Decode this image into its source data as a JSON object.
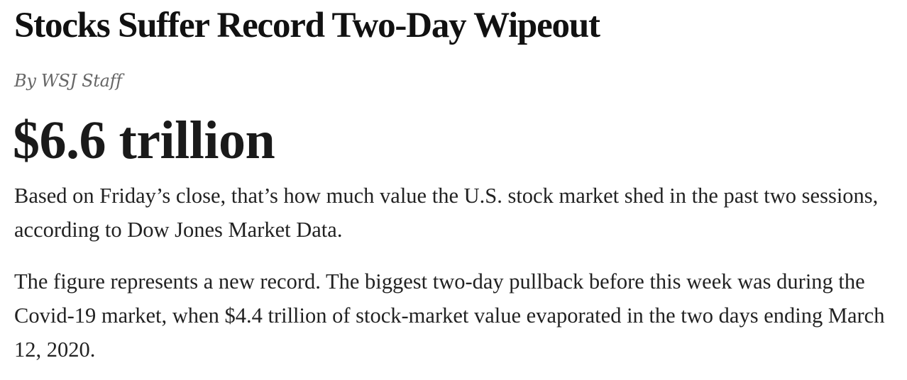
{
  "article": {
    "headline": "Stocks Suffer Record Two-Day Wipeout",
    "byline": "By WSJ Staff",
    "highlight_figure": "$6.6 trillion",
    "paragraphs": [
      "Based on Friday’s close, that’s how much value the U.S. stock market shed in the past two sessions, according to Dow Jones Market Data.",
      "The figure represents a new record. The biggest two-day pullback before this week was during the Covid-19 market, when $4.4 trillion of stock-market value evaporated in the two days ending March 12, 2020."
    ]
  }
}
